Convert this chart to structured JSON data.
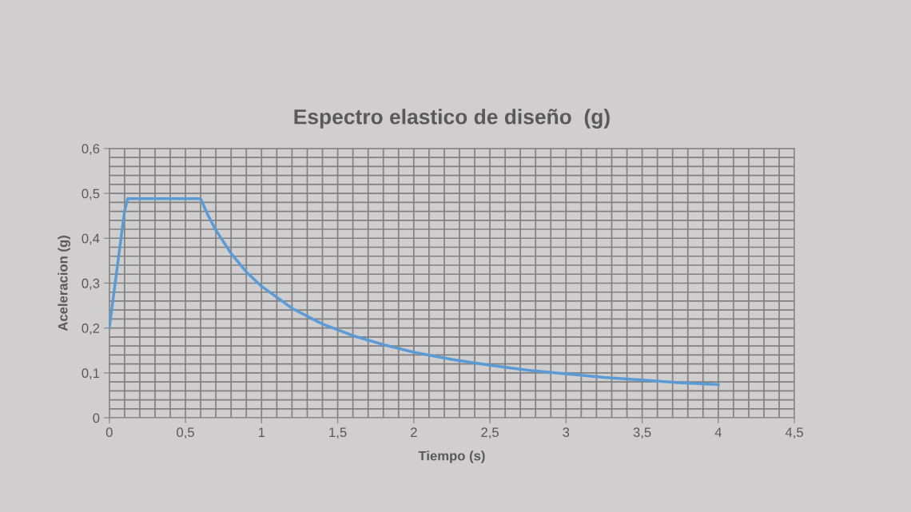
{
  "chart_data": {
    "type": "line",
    "title": "Espectro elastico de diseño  (g)",
    "xlabel": "Tiempo (s)",
    "ylabel": "Aceleracion (g)",
    "x": [
      0,
      0.1,
      0.12,
      0.6,
      0.65,
      0.7,
      0.8,
      0.9,
      1.0,
      1.2,
      1.4,
      1.6,
      1.8,
      2.0,
      2.25,
      2.5,
      2.75,
      3.0,
      3.25,
      3.5,
      3.75,
      4.0
    ],
    "series": [
      {
        "color": "#5b9bd5",
        "values": [
          0.2,
          0.46,
          0.488,
          0.488,
          0.45,
          0.418,
          0.366,
          0.325,
          0.293,
          0.244,
          0.209,
          0.183,
          0.163,
          0.146,
          0.13,
          0.117,
          0.106,
          0.098,
          0.09,
          0.084,
          0.078,
          0.074
        ]
      }
    ],
    "xlim": [
      0,
      4.5
    ],
    "ylim": [
      0,
      0.6
    ],
    "xticks": [
      0,
      {
        "value": 0.5,
        "label": "0,5"
      },
      1,
      {
        "value": 1.5,
        "label": "1,5"
      },
      2,
      {
        "value": 2.5,
        "label": "2,5"
      },
      3,
      {
        "value": 3.5,
        "label": "3,5"
      },
      4,
      {
        "value": 4.5,
        "label": "4,5"
      }
    ],
    "yticks": [
      0,
      {
        "value": 0.1,
        "label": "0,1"
      },
      {
        "value": 0.2,
        "label": "0,2"
      },
      {
        "value": 0.3,
        "label": "0,3"
      },
      {
        "value": 0.4,
        "label": "0,4"
      },
      {
        "value": 0.5,
        "label": "0,5"
      },
      {
        "value": 0.6,
        "label": "0,6"
      }
    ],
    "grid": true,
    "marker": "none",
    "line_style": "solid",
    "legend": false
  }
}
